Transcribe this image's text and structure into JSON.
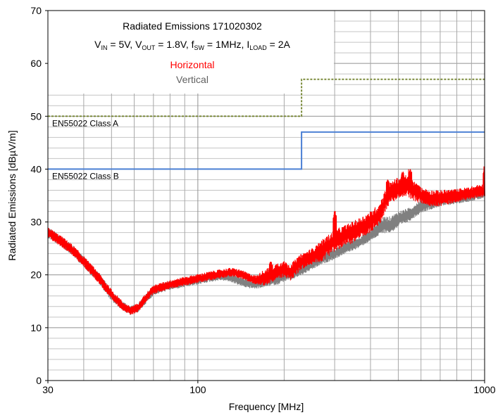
{
  "chart_data": {
    "type": "line",
    "title": "Radiated Emissions 171020302",
    "subtitle": {
      "parts": [
        {
          "text": "V",
          "sub": "IN",
          "after": " = 5V, "
        },
        {
          "text": "V",
          "sub": "OUT",
          "after": " = 1.8V, "
        },
        {
          "text": "f",
          "sub": "SW",
          "after": " = 1MHz, "
        },
        {
          "text": "I",
          "sub": "LOAD",
          "after": " = 2A"
        }
      ]
    },
    "xlabel": "Frequency [MHz]",
    "ylabel": "Radiated Emissions [dBµV/m]",
    "x_scale": "log",
    "xlim": [
      30,
      1000
    ],
    "ylim": [
      0,
      70
    ],
    "x_ticks": [
      30,
      100,
      1000
    ],
    "y_ticks": [
      0,
      10,
      20,
      30,
      40,
      50,
      60,
      70
    ],
    "grid": true,
    "legend": {
      "placement": "top-left",
      "entries": [
        {
          "label": "Horizontal",
          "color": "#ff0000"
        },
        {
          "label": "Vertical",
          "color": "#808080"
        }
      ]
    },
    "limits": [
      {
        "name": "EN55022 Class A",
        "color": "#7a8a3a",
        "style": "dotted",
        "points": [
          [
            30,
            50
          ],
          [
            230,
            50
          ],
          [
            230,
            57
          ],
          [
            1000,
            57
          ]
        ]
      },
      {
        "name": "EN55022 Class B",
        "color": "#4a7fd4",
        "style": "solid",
        "points": [
          [
            30,
            40
          ],
          [
            230,
            40
          ],
          [
            230,
            47
          ],
          [
            1000,
            47
          ]
        ]
      }
    ],
    "series": [
      {
        "name": "Vertical",
        "color": "#808080",
        "x": [
          30,
          33,
          36,
          40,
          45,
          50,
          55,
          58,
          62,
          66,
          70,
          80,
          90,
          100,
          110,
          120,
          130,
          140,
          150,
          160,
          170,
          180,
          190,
          200,
          210,
          220,
          230,
          250,
          270,
          300,
          330,
          360,
          400,
          430,
          450,
          470,
          500,
          550,
          600,
          700,
          800,
          900,
          1000
        ],
        "base": [
          28,
          26.5,
          25,
          22.5,
          19.5,
          16,
          14,
          13.2,
          13.8,
          15.5,
          17,
          18,
          18.5,
          19,
          19.5,
          19.8,
          19.5,
          18.8,
          18.3,
          18.2,
          18.5,
          19,
          19.2,
          19.8,
          20,
          20.5,
          21,
          22,
          23,
          24,
          25.2,
          26,
          27.5,
          29,
          29.5,
          29.5,
          30.5,
          31.5,
          33,
          34,
          34.5,
          35,
          35.5
        ],
        "amp": [
          1,
          1,
          1,
          1,
          1,
          1,
          0.8,
          0.8,
          0.8,
          0.8,
          0.8,
          0.8,
          0.8,
          0.8,
          0.8,
          0.8,
          0.8,
          0.8,
          0.8,
          0.8,
          0.8,
          1,
          1,
          1,
          1,
          1,
          1,
          1,
          1,
          1,
          1,
          1,
          1,
          1.5,
          1.5,
          1.5,
          1.5,
          1.2,
          1.2,
          1,
          1,
          1,
          1
        ]
      },
      {
        "name": "Horizontal",
        "color": "#ff0000",
        "x": [
          30,
          33,
          36,
          40,
          45,
          50,
          55,
          58,
          62,
          66,
          70,
          80,
          90,
          100,
          110,
          120,
          130,
          140,
          150,
          160,
          170,
          180,
          190,
          200,
          210,
          220,
          230,
          250,
          270,
          300,
          330,
          360,
          400,
          430,
          450,
          470,
          500,
          530,
          560,
          600,
          650,
          700,
          800,
          900,
          1000
        ],
        "base": [
          28,
          26.5,
          25,
          22.5,
          19.5,
          16.2,
          14,
          13.2,
          13.8,
          15.8,
          17.2,
          18.2,
          18.8,
          19.3,
          19.8,
          20.2,
          20.5,
          20.2,
          19.5,
          19,
          19.5,
          20,
          20.8,
          21,
          20.5,
          21.5,
          22.5,
          23.5,
          24.5,
          26.5,
          27.5,
          28.5,
          30,
          31.5,
          34,
          35.5,
          36.5,
          37,
          36,
          35,
          34.5,
          34.5,
          35,
          35.5,
          36
        ],
        "amp": [
          1,
          1,
          1,
          1,
          1,
          1,
          0.8,
          0.8,
          0.8,
          0.8,
          0.8,
          0.8,
          0.8,
          0.8,
          0.8,
          0.8,
          0.8,
          0.8,
          0.8,
          0.8,
          1.5,
          1.5,
          1.5,
          1.5,
          1.5,
          1.5,
          1.5,
          1.5,
          2,
          2,
          2,
          2,
          2,
          2,
          2,
          2,
          2,
          2,
          2,
          1.5,
          1.5,
          1.5,
          1.2,
          1.2,
          1.2
        ]
      }
    ],
    "spikes": [
      {
        "series": "Horizontal",
        "x": 180,
        "y": 22.5
      },
      {
        "series": "Horizontal",
        "x": 200,
        "y": 22.5
      },
      {
        "series": "Horizontal",
        "x": 260,
        "y": 25.5
      },
      {
        "series": "Horizontal",
        "x": 300,
        "y": 32
      },
      {
        "series": "Horizontal",
        "x": 460,
        "y": 38
      },
      {
        "series": "Horizontal",
        "x": 520,
        "y": 39.5
      },
      {
        "series": "Horizontal",
        "x": 550,
        "y": 40
      },
      {
        "series": "Horizontal",
        "x": 590,
        "y": 37
      },
      {
        "series": "Horizontal",
        "x": 1000,
        "y": 40.5
      }
    ]
  }
}
